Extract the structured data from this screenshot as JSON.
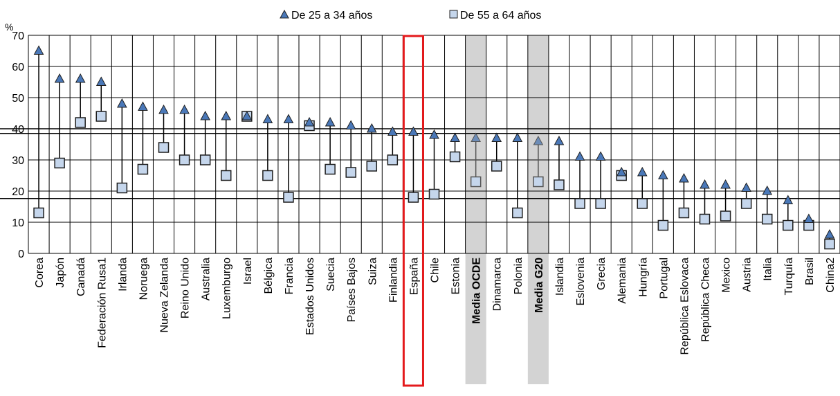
{
  "chart_data": {
    "type": "scatter",
    "y_unit_label": "%",
    "ylim": [
      0,
      70
    ],
    "y_ticks": [
      0,
      10,
      20,
      30,
      40,
      50,
      60,
      70
    ],
    "grid": true,
    "legend_placement": "top-center",
    "categories": [
      "Corea",
      "Japón",
      "Canadá",
      "Federación Rusa1",
      "Irlanda",
      "Noruega",
      "Nueva Zelanda",
      "Reino Unido",
      "Australia",
      "Luxemburgo",
      "Israel",
      "Bélgica",
      "Francia",
      "Estados Unidos",
      "Suecia",
      "Países Bajos",
      "Suiza",
      "Finlandia",
      "España",
      "Chile",
      "Estonia",
      "Media OCDE",
      "Dinamarca",
      "Polonia",
      "Media G20",
      "Islandia",
      "Eslovenia",
      "Grecia",
      "Alemania",
      "Hungría",
      "Portugal",
      "República Eslovaca",
      "República Checa",
      "Mexico",
      "Austria",
      "Italia",
      "Turquía",
      "Brasil",
      "China2"
    ],
    "series": [
      {
        "name": "De 25 a 34 años",
        "marker": "triangle",
        "values": [
          65,
          56,
          56,
          55,
          48,
          47,
          46,
          46,
          44,
          44,
          44,
          43,
          43,
          42,
          42,
          41,
          40,
          39,
          39,
          38,
          37,
          37,
          37,
          37,
          36,
          36,
          31,
          31,
          26,
          26,
          25,
          24,
          22,
          22,
          21,
          20,
          17,
          11,
          6
        ]
      },
      {
        "name": "De 55 a 64 años",
        "marker": "square",
        "values": [
          13,
          29,
          42,
          44,
          21,
          27,
          34,
          30,
          30,
          25,
          44,
          25,
          18,
          41,
          27,
          26,
          28,
          30,
          18,
          19,
          31,
          23,
          28,
          13,
          23,
          22,
          16,
          16,
          25,
          16,
          9,
          13,
          11,
          12,
          16,
          11,
          9,
          9,
          3
        ]
      }
    ],
    "highlighted_category": "España",
    "bold_categories": [
      "Media OCDE",
      "Media G20"
    ],
    "shaded_categories": [
      "Media OCDE",
      "Media G20"
    ],
    "reference_lines": [
      38.5,
      40,
      17.6
    ],
    "colors": {
      "triangle_fill": "#4a78b8",
      "square_fill": "#c5d6ec",
      "marker_stroke": "#1f1f1f",
      "grid": "#000000",
      "shade": "#d3d3d3",
      "highlight": "#e41a1c"
    }
  }
}
